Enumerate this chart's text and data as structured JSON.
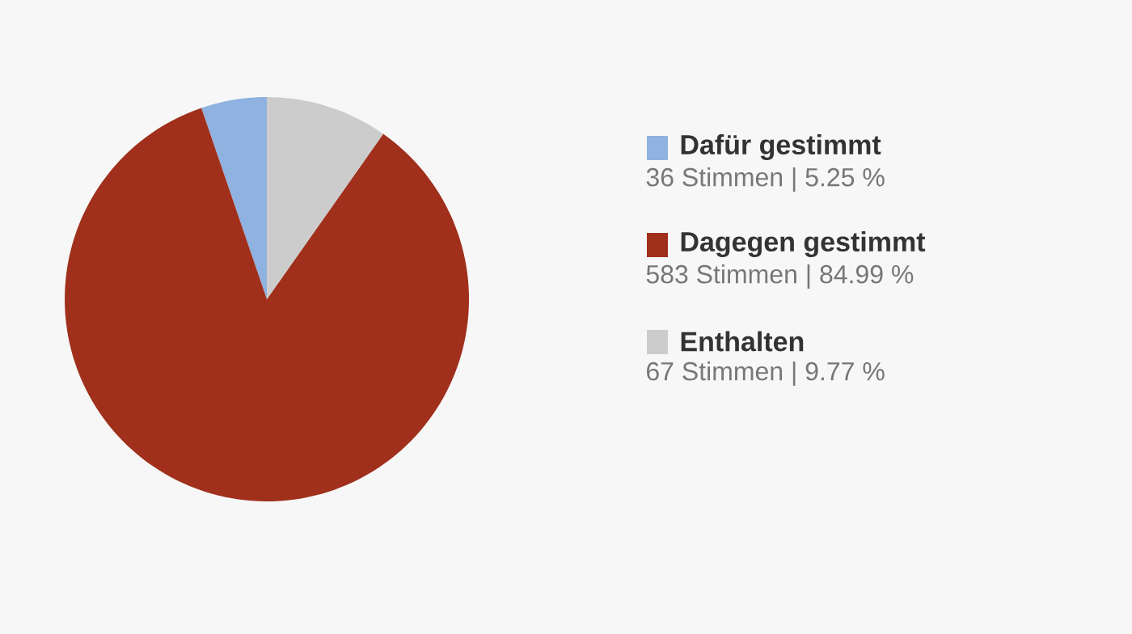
{
  "chart_data": {
    "type": "pie",
    "categories": [
      "Dafür gestimmt",
      "Dagegen gestimmt",
      "Enthalten"
    ],
    "values": [
      36,
      583,
      67
    ],
    "colors": [
      "#8fb2e0",
      "#a0301c",
      "#cccccc"
    ],
    "value_labels": [
      "36 Stimmen | 5.25 %",
      "583 Stimmen | 84.99 %",
      "67 Stimmen | 9.77 %"
    ],
    "legend": "right"
  }
}
